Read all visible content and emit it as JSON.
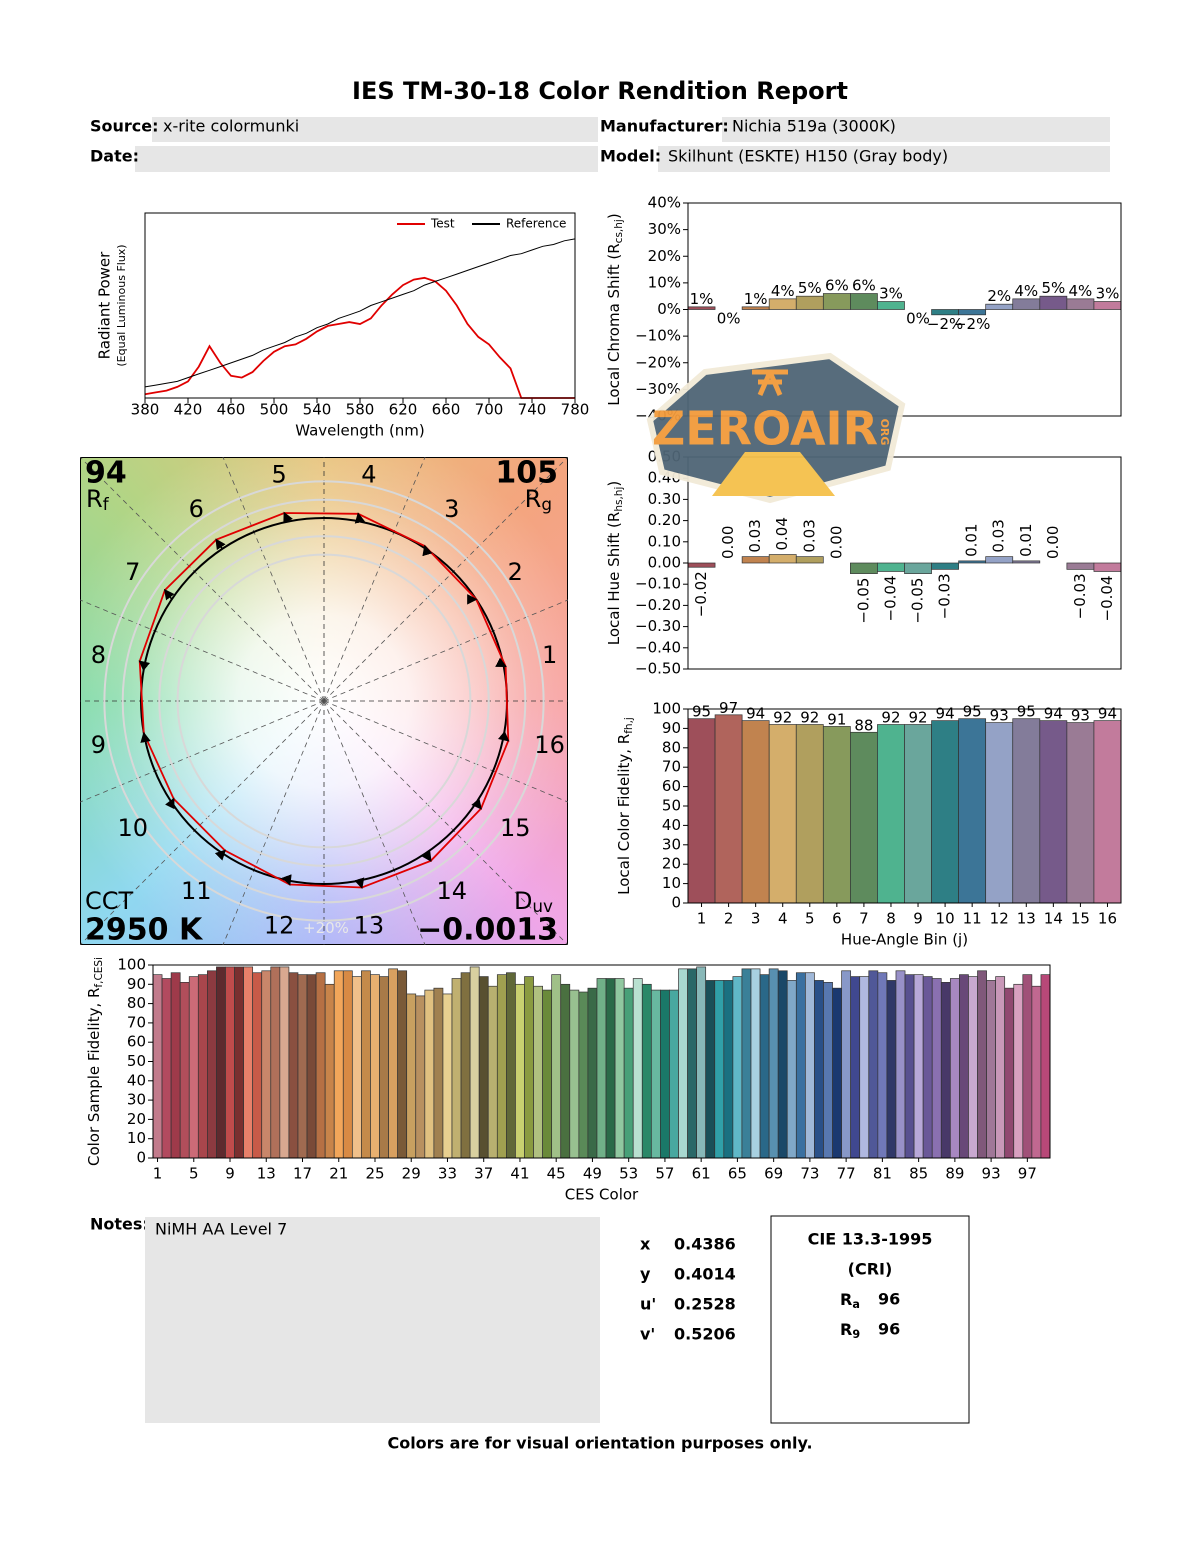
{
  "title": "IES TM-30-18 Color Rendition Report",
  "fields": {
    "source_label": "Source:",
    "source": "x-rite colormunki",
    "manufacturer_label": "Manufacturer:",
    "manufacturer": "Nichia 519a (3000K)",
    "date_label": "Date:",
    "model_label": "Model:",
    "model": "Skilhunt (ESKTE) H150 (Gray body)"
  },
  "watermark": {
    "text": "ZEROAIR",
    "sub": "ORG"
  },
  "chart_data": [
    {
      "type": "line",
      "x": [
        380,
        390,
        400,
        410,
        420,
        430,
        440,
        450,
        460,
        470,
        480,
        490,
        500,
        510,
        520,
        530,
        540,
        550,
        560,
        570,
        580,
        590,
        600,
        610,
        620,
        630,
        640,
        650,
        660,
        670,
        680,
        690,
        700,
        710,
        720,
        730,
        740,
        750,
        760,
        770,
        780
      ],
      "series": [
        {
          "name": "Test",
          "color": "#e00000",
          "values": [
            0.02,
            0.03,
            0.04,
            0.06,
            0.09,
            0.17,
            0.28,
            0.19,
            0.12,
            0.11,
            0.14,
            0.2,
            0.25,
            0.28,
            0.29,
            0.32,
            0.36,
            0.39,
            0.4,
            0.41,
            0.4,
            0.43,
            0.5,
            0.56,
            0.61,
            0.64,
            0.65,
            0.63,
            0.58,
            0.5,
            0.4,
            0.33,
            0.29,
            0.22,
            0.16,
            0,
            0,
            0,
            0,
            0,
            0
          ]
        },
        {
          "name": "Reference",
          "color": "#000000",
          "values": [
            0.06,
            0.07,
            0.08,
            0.09,
            0.11,
            0.13,
            0.15,
            0.17,
            0.19,
            0.21,
            0.23,
            0.26,
            0.28,
            0.3,
            0.33,
            0.35,
            0.38,
            0.4,
            0.43,
            0.45,
            0.47,
            0.5,
            0.52,
            0.54,
            0.56,
            0.58,
            0.61,
            0.63,
            0.65,
            0.67,
            0.69,
            0.71,
            0.73,
            0.75,
            0.77,
            0.78,
            0.8,
            0.82,
            0.83,
            0.85,
            0.86
          ]
        }
      ],
      "xlim": [
        380,
        780
      ],
      "xticks": [
        380,
        420,
        460,
        500,
        540,
        580,
        620,
        660,
        700,
        740,
        780
      ],
      "ylim": [
        0,
        1
      ],
      "xlabel": "Wavelength (nm)",
      "ylabel": "Radiant Power",
      "ylabel_note": "(Equal Luminous Flux)",
      "legend": "upper right"
    },
    {
      "type": "bar",
      "values": [
        1,
        0,
        1,
        4,
        5,
        6,
        6,
        3,
        0,
        -2,
        -2,
        2,
        4,
        5,
        4,
        3
      ],
      "value_labels": [
        "1%",
        "0%",
        "1%",
        "4%",
        "5%",
        "6%",
        "6%",
        "3%",
        "0%",
        "−2%",
        "−2%",
        "2%",
        "4%",
        "5%",
        "4%",
        "3%"
      ],
      "colors": [
        "#9e4f5a",
        "#b0645c",
        "#c1834f",
        "#d4ae6b",
        "#b09f5e",
        "#879a5c",
        "#5e8b5d",
        "#4fb38f",
        "#6aa69c",
        "#2e7f85",
        "#3c7597",
        "#94a2c6",
        "#837c9a",
        "#765a8a",
        "#9a7b95",
        "#c27b9c"
      ],
      "ylim": [
        -40,
        40
      ],
      "yticks": [
        {
          "value": -40,
          "label": "−40%"
        },
        {
          "value": -30,
          "label": "−30%"
        },
        {
          "value": -20,
          "label": "−20%"
        },
        {
          "value": -10,
          "label": "−10%"
        },
        {
          "value": 0,
          "label": "0%"
        },
        {
          "value": 10,
          "label": "10%"
        },
        {
          "value": 20,
          "label": "20%"
        },
        {
          "value": 30,
          "label": "30%"
        },
        {
          "value": 40,
          "label": "40%"
        }
      ],
      "ylabel": {
        "text": "Local Chroma Shift (R",
        "sub": "cs,hj",
        "tail": ")"
      }
    },
    {
      "type": "bar",
      "values": [
        -0.02,
        0,
        0.03,
        0.04,
        0.03,
        0,
        -0.05,
        -0.04,
        -0.05,
        -0.03,
        0.01,
        0.03,
        0.01,
        0,
        -0.03,
        -0.04
      ],
      "value_labels": [
        "−0.02",
        "0.00",
        "0.03",
        "0.04",
        "0.03",
        "0.00",
        "−0.05",
        "−0.04",
        "−0.05",
        "−0.03",
        "0.01",
        "0.03",
        "0.01",
        "0.00",
        "−0.03",
        "−0.04"
      ],
      "value_label_rotation": -90,
      "colors": [
        "#9e4f5a",
        "#b0645c",
        "#c1834f",
        "#d4ae6b",
        "#b09f5e",
        "#879a5c",
        "#5e8b5d",
        "#4fb38f",
        "#6aa69c",
        "#2e7f85",
        "#3c7597",
        "#94a2c6",
        "#837c9a",
        "#765a8a",
        "#9a7b95",
        "#c27b9c"
      ],
      "ylim": [
        -0.5,
        0.5
      ],
      "yticks": [
        {
          "value": -0.5,
          "label": "−0.50"
        },
        {
          "value": -0.4,
          "label": "−0.40"
        },
        {
          "value": -0.3,
          "label": "−0.30"
        },
        {
          "value": -0.2,
          "label": "−0.20"
        },
        {
          "value": -0.1,
          "label": "−0.10"
        },
        {
          "value": 0,
          "label": "0.00"
        },
        {
          "value": 0.1,
          "label": "0.10"
        },
        {
          "value": 0.2,
          "label": "0.20"
        },
        {
          "value": 0.3,
          "label": "0.30"
        },
        {
          "value": 0.4,
          "label": "0.40"
        },
        {
          "value": 0.5,
          "label": "0.50"
        }
      ],
      "ylabel": {
        "text": "Local Hue Shift (R",
        "sub": "hs,hj",
        "tail": ")"
      }
    },
    {
      "type": "vector",
      "categories": [
        "1",
        "2",
        "3",
        "4",
        "5",
        "6",
        "7",
        "8",
        "9",
        "10",
        "11",
        "12",
        "13",
        "14",
        "15",
        "16"
      ],
      "rf": 94,
      "rf_label": {
        "text": "R",
        "sub": "f"
      },
      "rg": 105,
      "rg_label": {
        "text": "R",
        "sub": "g"
      },
      "cct_label": "CCT",
      "cct": "2950 K",
      "duv_label": {
        "text": "D",
        "sub": "uv"
      },
      "duv": "−0.0013",
      "ring_label": "+20%"
    },
    {
      "type": "bar",
      "categories": [
        "1",
        "2",
        "3",
        "4",
        "5",
        "6",
        "7",
        "8",
        "9",
        "10",
        "11",
        "12",
        "13",
        "14",
        "15",
        "16"
      ],
      "values": [
        95,
        97,
        94,
        92,
        92,
        91,
        88,
        92,
        92,
        94,
        95,
        93,
        95,
        94,
        93,
        94
      ],
      "data_labels": true,
      "colors": [
        "#9e4f5a",
        "#b0645c",
        "#c1834f",
        "#d4ae6b",
        "#b09f5e",
        "#879a5c",
        "#5e8b5d",
        "#4fb38f",
        "#6aa69c",
        "#2e7f85",
        "#3c7597",
        "#94a2c6",
        "#837c9a",
        "#765a8a",
        "#9a7b95",
        "#c27b9c"
      ],
      "ylim": [
        0,
        100
      ],
      "yticks": [
        0,
        10,
        20,
        30,
        40,
        50,
        60,
        70,
        80,
        90,
        100
      ],
      "xlabel": "Hue-Angle Bin (j)",
      "ylabel": {
        "text": "Local Color Fidelity, R",
        "sub": "fh,j"
      }
    },
    {
      "type": "bar",
      "categories": [
        "1",
        null,
        null,
        null,
        "5",
        null,
        null,
        null,
        "9",
        null,
        null,
        null,
        "13",
        null,
        null,
        null,
        "17",
        null,
        null,
        null,
        "21",
        null,
        null,
        null,
        "25",
        null,
        null,
        null,
        "29",
        null,
        null,
        null,
        "33",
        null,
        null,
        null,
        "37",
        null,
        null,
        null,
        "41",
        null,
        null,
        null,
        "45",
        null,
        null,
        null,
        "49",
        null,
        null,
        null,
        "53",
        null,
        null,
        null,
        "57",
        null,
        null,
        null,
        "61",
        null,
        null,
        null,
        "65",
        null,
        null,
        null,
        "69",
        null,
        null,
        null,
        "73",
        null,
        null,
        null,
        "77",
        null,
        null,
        null,
        "81",
        null,
        null,
        null,
        "85",
        null,
        null,
        null,
        "89",
        null,
        null,
        null,
        "93",
        null,
        null,
        null,
        "97",
        null,
        null
      ],
      "values": [
        95,
        93,
        96,
        91,
        94,
        95,
        97,
        99,
        99,
        99,
        99,
        96,
        97,
        99,
        99,
        96,
        95,
        95,
        96,
        90,
        97,
        97,
        94,
        97,
        95,
        94,
        98,
        97,
        85,
        84,
        87,
        88,
        85,
        93,
        96,
        99,
        94,
        89,
        95,
        96,
        90,
        94,
        89,
        87,
        95,
        90,
        87,
        86,
        88,
        93,
        93,
        93,
        88,
        93,
        90,
        87,
        87,
        87,
        98,
        98,
        99,
        92,
        92,
        92,
        94,
        98,
        98,
        95,
        98,
        97,
        92,
        96,
        96,
        92,
        91,
        88,
        97,
        94,
        94,
        97,
        96,
        92,
        97,
        95,
        95,
        94,
        93,
        91,
        93,
        95,
        94,
        97,
        92,
        94,
        88,
        90,
        95,
        89,
        95
      ],
      "colors": [
        "#c27b8c",
        "#b24a5f",
        "#9e3a4a",
        "#b14e5b",
        "#cc6b77",
        "#a8464c",
        "#8c3a40",
        "#5e2a2e",
        "#c04b4b",
        "#7a2f2f",
        "#e8806a",
        "#c85a48",
        "#c9866a",
        "#b0705a",
        "#d8a890",
        "#8a5040",
        "#a06a50",
        "#7a4a38",
        "#b67044",
        "#c8844a",
        "#f2a65a",
        "#d88a44",
        "#f0c08a",
        "#c48a4a",
        "#e8b070",
        "#a87a48",
        "#d8a060",
        "#7a5a38",
        "#c8a060",
        "#b89060",
        "#e0c080",
        "#a08050",
        "#e8d090",
        "#c0b070",
        "#807040",
        "#d8d0a0",
        "#585030",
        "#b8b070",
        "#a0a050",
        "#606838",
        "#c8d070",
        "#8a9a40",
        "#b0c080",
        "#6a8a3a",
        "#a0c088",
        "#4a7040",
        "#98c090",
        "#5a8a58",
        "#3a6a48",
        "#70b088",
        "#2a6a48",
        "#90c8a0",
        "#48a078",
        "#b8e0d0",
        "#2a8868",
        "#68b8a0",
        "#1a7868",
        "#48a8a0",
        "#a8d8d0",
        "#2a6868",
        "#88b8b8",
        "#1a5058",
        "#30a0a8",
        "#1a7080",
        "#60b8c8",
        "#3a8098",
        "#a8d0e0",
        "#2a6888",
        "#5890b0",
        "#1a4868",
        "#80a8c8",
        "#3a70a0",
        "#a0b8d8",
        "#2a5088",
        "#5878b0",
        "#1a3870",
        "#8898c8",
        "#404890",
        "#b0b8e0",
        "#505898",
        "#7078b8",
        "#303868",
        "#9890c8",
        "#585090",
        "#b8a8d8",
        "#6a5898",
        "#8a70b0",
        "#483868",
        "#a888c0",
        "#684878",
        "#c8a8d0",
        "#80587a",
        "#a07898",
        "#c898b8",
        "#904870",
        "#d8a0c0",
        "#a05078",
        "#c06890",
        "#b84878"
      ],
      "ylim": [
        0,
        100
      ],
      "yticks": [
        0,
        10,
        20,
        30,
        40,
        50,
        60,
        70,
        80,
        90,
        100
      ],
      "xlabel": "CES Color",
      "ylabel": {
        "text": "Color Sample Fidelity, R",
        "sub": "f,CESi"
      }
    }
  ],
  "notes": {
    "label": "Notes:",
    "text": "NiMH AA Level 7"
  },
  "chromaticity": [
    {
      "label": "x",
      "value": 0.4386
    },
    {
      "label": "y",
      "value": 0.4014
    },
    {
      "label": "u'",
      "value": 0.2528
    },
    {
      "label": "v'",
      "value": 0.5206
    }
  ],
  "cri": {
    "title": "CIE 13.3-1995",
    "subtitle": "(CRI)",
    "ra_label": {
      "text": "R",
      "sub": "a"
    },
    "ra": 96,
    "r9_label": {
      "text": "R",
      "sub": "9"
    },
    "r9": 96
  },
  "footer": "Colors are for visual orientation purposes only."
}
